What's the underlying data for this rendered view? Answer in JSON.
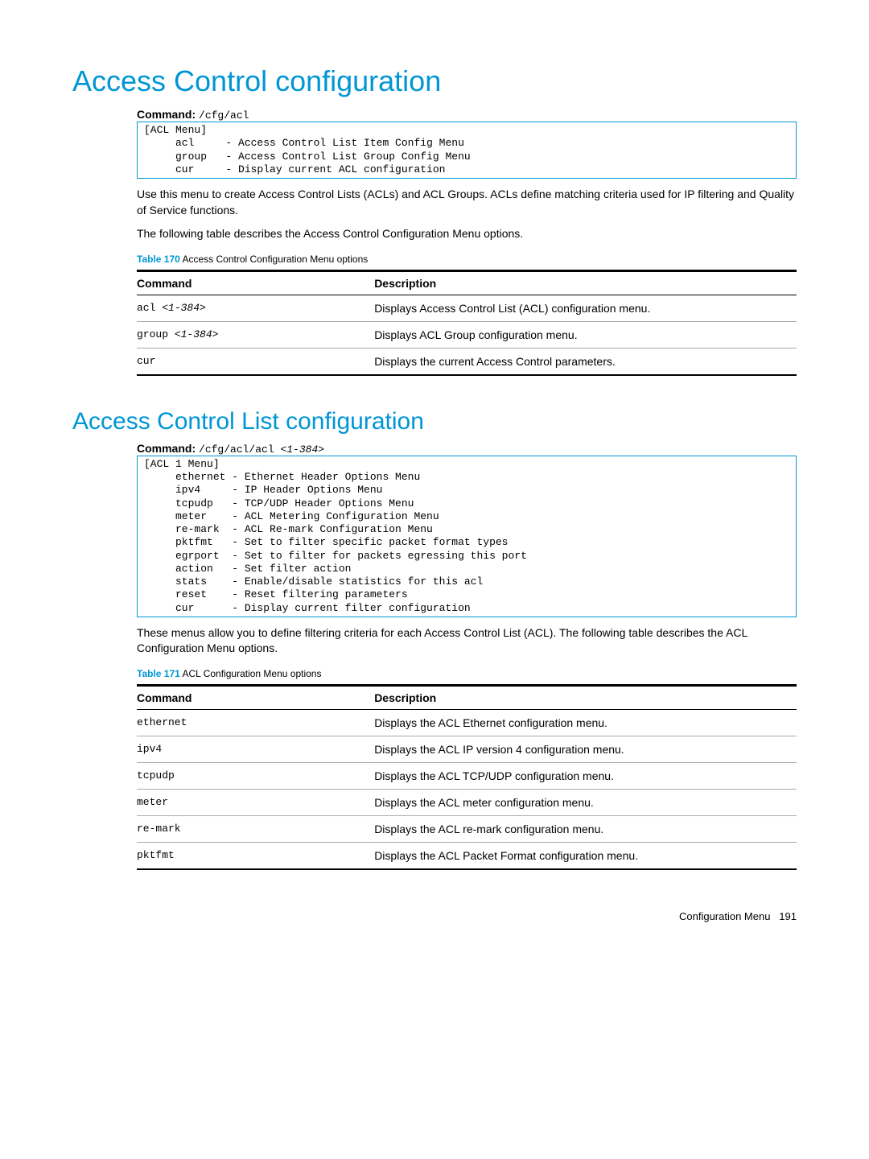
{
  "section1": {
    "title": "Access Control configuration",
    "command_label": "Command:",
    "command_path": "/cfg/acl",
    "codebox": "[ACL Menu]\n     acl     - Access Control List Item Config Menu\n     group   - Access Control List Group Config Menu\n     cur     - Display current ACL configuration",
    "para1": "Use this menu to create Access Control Lists (ACLs) and ACL Groups. ACLs define matching criteria used for IP filtering and Quality of Service functions.",
    "para2": "The following table describes the Access Control Configuration Menu options.",
    "table_caption_label": "Table 170",
    "table_caption_text": "Access Control Configuration Menu options",
    "table_headers": {
      "cmd": "Command",
      "desc": "Description"
    },
    "rows": [
      {
        "cmd": "acl ",
        "arg": "<1-384>",
        "desc": "Displays Access Control List (ACL) configuration menu."
      },
      {
        "cmd": "group ",
        "arg": "<1-384>",
        "desc": "Displays ACL Group configuration menu."
      },
      {
        "cmd": "cur",
        "arg": "",
        "desc": "Displays the current Access Control parameters."
      }
    ]
  },
  "section2": {
    "title": "Access Control List configuration",
    "command_label": "Command:",
    "command_path_prefix": "/cfg/acl/acl ",
    "command_path_arg": "<1-384>",
    "codebox": "[ACL 1 Menu]\n     ethernet - Ethernet Header Options Menu\n     ipv4     - IP Header Options Menu\n     tcpudp   - TCP/UDP Header Options Menu\n     meter    - ACL Metering Configuration Menu\n     re-mark  - ACL Re-mark Configuration Menu\n     pktfmt   - Set to filter specific packet format types\n     egrport  - Set to filter for packets egressing this port\n     action   - Set filter action\n     stats    - Enable/disable statistics for this acl\n     reset    - Reset filtering parameters\n     cur      - Display current filter configuration",
    "para1": "These menus allow you to define filtering criteria for each Access Control List (ACL). The following table describes the ACL Configuration Menu options.",
    "table_caption_label": "Table 171",
    "table_caption_text": "ACL Configuration Menu options",
    "table_headers": {
      "cmd": "Command",
      "desc": "Description"
    },
    "rows": [
      {
        "cmd": "ethernet",
        "desc": "Displays the ACL Ethernet configuration menu."
      },
      {
        "cmd": "ipv4",
        "desc": "Displays the ACL IP version 4 configuration menu."
      },
      {
        "cmd": "tcpudp",
        "desc": "Displays the ACL TCP/UDP configuration menu."
      },
      {
        "cmd": "meter",
        "desc": "Displays the ACL meter configuration menu."
      },
      {
        "cmd": "re-mark",
        "desc": "Displays the ACL re-mark configuration menu."
      },
      {
        "cmd": "pktfmt",
        "desc": "Displays the ACL Packet Format configuration menu."
      }
    ]
  },
  "footer": {
    "text": "Configuration Menu",
    "page": "191"
  }
}
